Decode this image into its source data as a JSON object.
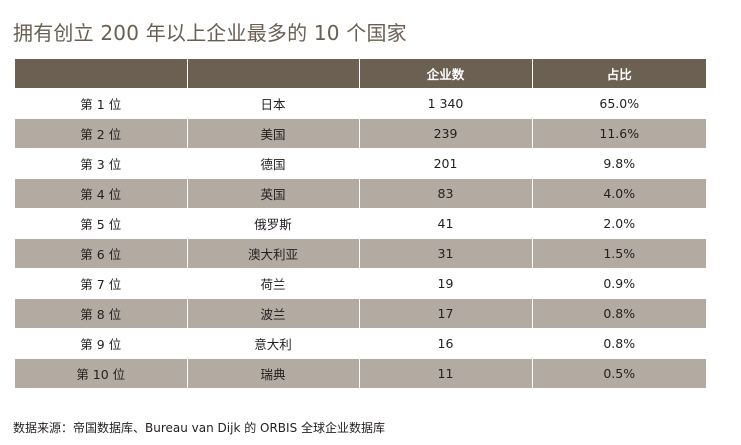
{
  "title": "拥有创立 200 年以上企业最多的 10 个国家",
  "table": {
    "headers": [
      "",
      "",
      "企业数",
      "占比"
    ],
    "rows": [
      {
        "rank": "第 1 位",
        "country": "日本",
        "count": "1 340",
        "share": "65.0%"
      },
      {
        "rank": "第 2 位",
        "country": "美国",
        "count": "239",
        "share": "11.6%"
      },
      {
        "rank": "第 3 位",
        "country": "德国",
        "count": "201",
        "share": "9.8%"
      },
      {
        "rank": "第 4 位",
        "country": "英国",
        "count": "83",
        "share": "4.0%"
      },
      {
        "rank": "第 5 位",
        "country": "俄罗斯",
        "count": "41",
        "share": "2.0%"
      },
      {
        "rank": "第 6 位",
        "country": "澳大利亚",
        "count": "31",
        "share": "1.5%"
      },
      {
        "rank": "第 7 位",
        "country": "荷兰",
        "count": "19",
        "share": "0.9%"
      },
      {
        "rank": "第 8 位",
        "country": "波兰",
        "count": "17",
        "share": "0.8%"
      },
      {
        "rank": "第 9 位",
        "country": "意大利",
        "count": "16",
        "share": "0.8%"
      },
      {
        "rank": "第 10 位",
        "country": "瑞典",
        "count": "11",
        "share": "0.5%"
      }
    ]
  },
  "source": "数据来源：帝国数据库、Bureau  van  Dijk 的 ORBIS 全球企业数据库",
  "colors": {
    "title": "#6a5e52",
    "header_bg": "#6c6053",
    "header_text": "#ffffff",
    "row_shaded": "#b3aaa1",
    "row_plain": "#ffffff"
  }
}
